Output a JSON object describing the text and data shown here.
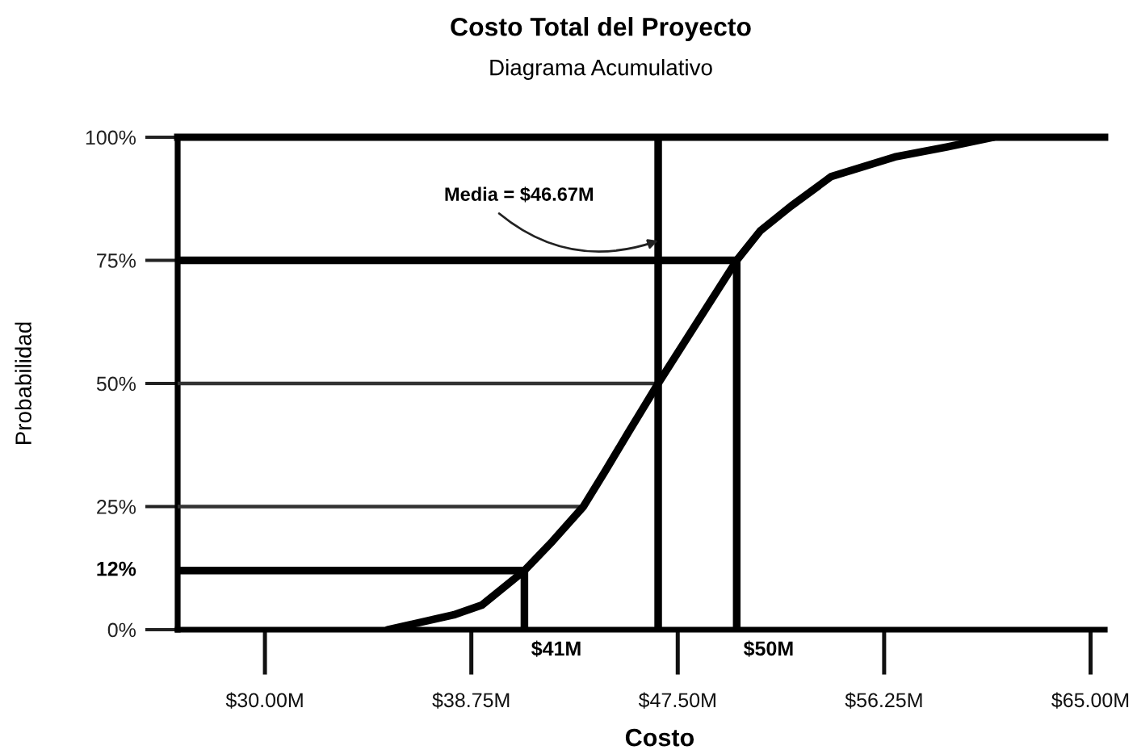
{
  "chart_data": {
    "type": "line",
    "title": "Costo Total del Proyecto",
    "subtitle": "Diagrama Acumulativo",
    "xlabel": "Costo",
    "ylabel": "Probabilidad",
    "x": [
      35.2,
      38.0,
      39.2,
      41,
      42.2,
      43.5,
      44.4,
      45.4,
      46.67,
      48.0,
      50,
      51.0,
      52.3,
      54.0,
      56.7,
      58.9,
      60.9
    ],
    "series": [
      {
        "color": "#000000",
        "values": [
          0,
          3,
          5,
          12,
          18,
          25,
          32,
          40,
          50,
          60,
          75,
          81,
          86,
          92,
          96,
          98,
          100
        ]
      }
    ],
    "xlim": [
      26.3,
      65.6
    ],
    "xticks": [
      {
        "value": 30,
        "label": "$30.00M"
      },
      {
        "value": 38.75,
        "label": "$38.75M"
      },
      {
        "value": 47.5,
        "label": "$47.50M"
      },
      {
        "value": 56.25,
        "label": "$56.25M"
      },
      {
        "value": 65,
        "label": "$65.00M"
      }
    ],
    "ylim": [
      0,
      100
    ],
    "yticks": [
      {
        "value": 0,
        "label": "0%"
      },
      {
        "value": 25,
        "label": "25%"
      },
      {
        "value": 50,
        "label": "50%"
      },
      {
        "value": 75,
        "label": "75%"
      },
      {
        "value": 100,
        "label": "100%"
      }
    ],
    "ref_lines": [
      {
        "axis": "y",
        "value": 12,
        "label": "12%",
        "color": "#000000"
      },
      {
        "axis": "y",
        "value": 25,
        "color": "#333333"
      },
      {
        "axis": "y",
        "value": 50,
        "color": "#333333"
      },
      {
        "axis": "y",
        "value": 75,
        "color": "#000000"
      },
      {
        "axis": "x",
        "value": 41,
        "label": "$41M",
        "color": "#000000"
      },
      {
        "axis": "x",
        "value": 46.67,
        "color": "#000000"
      },
      {
        "axis": "x",
        "value": 50,
        "label": "$50M",
        "color": "#000000"
      }
    ],
    "annotations": [
      {
        "text": "Media = $46.67M",
        "x": 46.67,
        "y": 79
      }
    ]
  }
}
